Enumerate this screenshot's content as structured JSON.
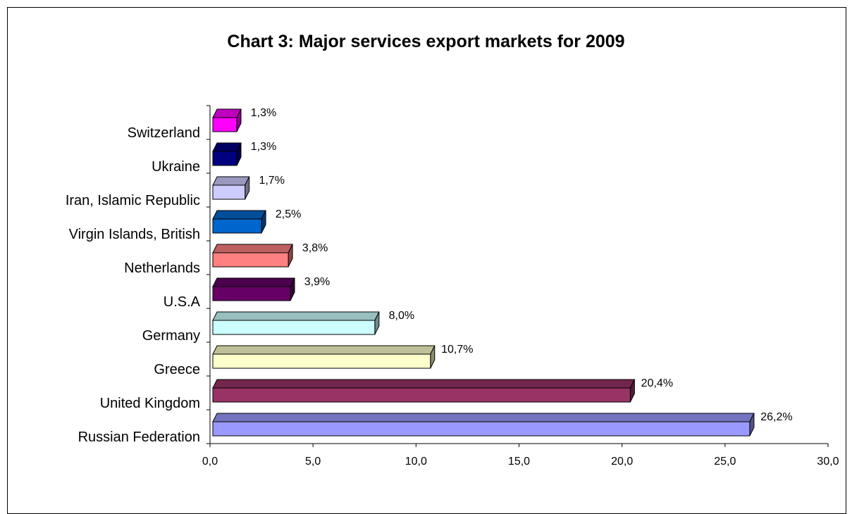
{
  "chart_data": {
    "type": "bar",
    "orientation": "horizontal",
    "style": "3d",
    "title": "Chart 3: Major services export markets for 2009",
    "categories": [
      "Russian Federation",
      "United Kingdom",
      "Greece",
      "Germany",
      "U.S.A",
      "Netherlands",
      "Virgin Islands, British",
      "Iran, Islamic Republic",
      "Ukraine",
      "Switzerland"
    ],
    "values": [
      26.2,
      20.4,
      10.7,
      8.0,
      3.9,
      3.8,
      2.5,
      1.7,
      1.3,
      1.3
    ],
    "data_labels": [
      "26,2%",
      "20,4%",
      "10,7%",
      "8,0%",
      "3,9%",
      "3,8%",
      "2,5%",
      "1,7%",
      "1,3%",
      "1,3%"
    ],
    "colors": [
      "#9999ff",
      "#993366",
      "#ffffcc",
      "#ccffff",
      "#660066",
      "#ff8080",
      "#0066cc",
      "#ccccff",
      "#000080",
      "#ff00ff"
    ],
    "xlim": [
      0,
      30
    ],
    "xticks": [
      0,
      5,
      10,
      15,
      20,
      25,
      30
    ],
    "xtick_labels": [
      "0,0",
      "5,0",
      "10,0",
      "15,0",
      "20,0",
      "25,0",
      "30,0"
    ],
    "xlabel": "",
    "ylabel": "",
    "grid": false,
    "legend": "none"
  }
}
